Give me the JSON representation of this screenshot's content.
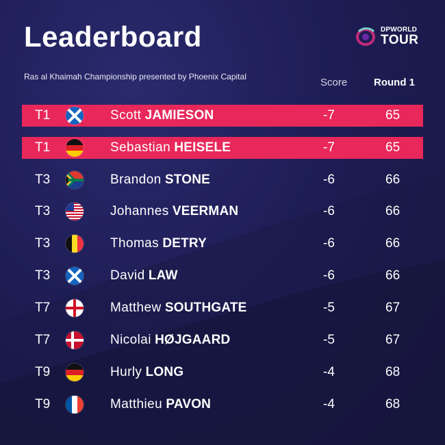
{
  "header": {
    "title": "Leaderboard",
    "subtitle": "Ras al Khaimah Championship presented by Phoenix Capital",
    "logo_top": "DPWORLD",
    "logo_bottom": "TOUR"
  },
  "columns": {
    "score": "Score",
    "round": "Round 1"
  },
  "colors": {
    "highlight": "#e8285a",
    "background": "#1e1d55"
  },
  "rows": [
    {
      "pos": "T1",
      "flag": "scotland-flag-icon",
      "first": "Scott",
      "last": "JAMIESON",
      "score": "-7",
      "round": "65",
      "highlight": true
    },
    {
      "pos": "T1",
      "flag": "germany-flag-icon",
      "first": "Sebastian",
      "last": "HEISELE",
      "score": "-7",
      "round": "65",
      "highlight": true
    },
    {
      "pos": "T3",
      "flag": "south-africa-flag-icon",
      "first": "Brandon",
      "last": "STONE",
      "score": "-6",
      "round": "66",
      "highlight": false
    },
    {
      "pos": "T3",
      "flag": "usa-flag-icon",
      "first": "Johannes",
      "last": "VEERMAN",
      "score": "-6",
      "round": "66",
      "highlight": false
    },
    {
      "pos": "T3",
      "flag": "belgium-flag-icon",
      "first": "Thomas",
      "last": "DETRY",
      "score": "-6",
      "round": "66",
      "highlight": false
    },
    {
      "pos": "T3",
      "flag": "scotland-flag-icon",
      "first": "David",
      "last": "LAW",
      "score": "-6",
      "round": "66",
      "highlight": false
    },
    {
      "pos": "T7",
      "flag": "england-flag-icon",
      "first": "Matthew",
      "last": "SOUTHGATE",
      "score": "-5",
      "round": "67",
      "highlight": false
    },
    {
      "pos": "T7",
      "flag": "denmark-flag-icon",
      "first": "Nicolai",
      "last": "HØJGAARD",
      "score": "-5",
      "round": "67",
      "highlight": false
    },
    {
      "pos": "T9",
      "flag": "germany-flag-icon",
      "first": "Hurly",
      "last": "LONG",
      "score": "-4",
      "round": "68",
      "highlight": false
    },
    {
      "pos": "T9",
      "flag": "france-flag-icon",
      "first": "Matthieu",
      "last": "PAVON",
      "score": "-4",
      "round": "68",
      "highlight": false
    }
  ]
}
